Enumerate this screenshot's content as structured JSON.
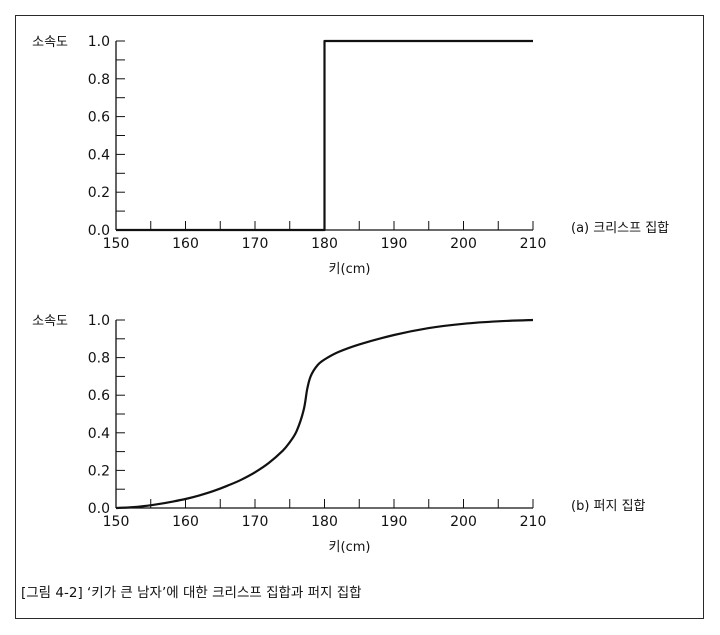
{
  "caption": "[그림 4-2] ‘키가 큰 남자’에 대한 크리스프 집합과 퍼지 집합",
  "chart_data": [
    {
      "type": "line",
      "panel_label": "(a) 크리스프 집합",
      "xlabel": "키(cm)",
      "ylabel": "소속도",
      "xlim": [
        150,
        210
      ],
      "ylim": [
        0,
        1
      ],
      "xticks": [
        150,
        160,
        170,
        180,
        190,
        200,
        210
      ],
      "yticks": [
        "0.0",
        "0.2",
        "0.4",
        "0.6",
        "0.8",
        "1.0"
      ],
      "x": [
        150,
        180,
        180,
        210
      ],
      "y": [
        0,
        0,
        1,
        1
      ]
    },
    {
      "type": "line",
      "panel_label": "(b) 퍼지 집합",
      "xlabel": "키(cm)",
      "ylabel": "소속도",
      "xlim": [
        150,
        210
      ],
      "ylim": [
        0,
        1
      ],
      "xticks": [
        150,
        160,
        170,
        180,
        190,
        200,
        210
      ],
      "yticks": [
        "0.0",
        "0.2",
        "0.4",
        "0.6",
        "0.8",
        "1.0"
      ],
      "x": [
        150,
        152,
        154,
        156,
        158,
        160,
        162,
        164,
        166,
        168,
        170,
        172,
        174,
        175,
        176,
        177,
        177.5,
        178,
        179,
        180,
        182,
        185,
        190,
        195,
        200,
        205,
        210
      ],
      "y": [
        0,
        0.003,
        0.01,
        0.02,
        0.033,
        0.048,
        0.067,
        0.09,
        0.118,
        0.15,
        0.19,
        0.24,
        0.305,
        0.35,
        0.41,
        0.52,
        0.63,
        0.7,
        0.76,
        0.79,
        0.83,
        0.87,
        0.92,
        0.957,
        0.98,
        0.993,
        1.0
      ]
    }
  ]
}
